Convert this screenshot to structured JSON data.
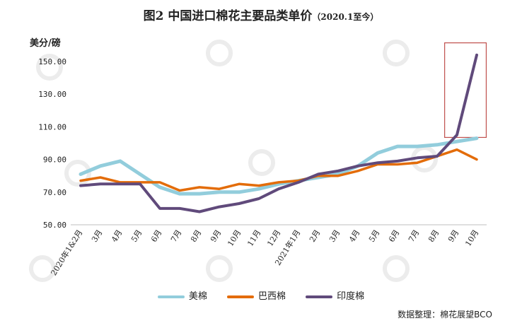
{
  "chart_data": {
    "type": "line",
    "title": "图2  中国进口棉花主要品类单价",
    "subtitle": "（2020.1至今）",
    "ylabel": "美分/磅",
    "ylim": [
      50,
      160
    ],
    "yticks": [
      "50.00",
      "70.00",
      "90.00",
      "110.00",
      "130.00",
      "150.00"
    ],
    "categories": [
      "2020年1&2月",
      "3月",
      "4月",
      "5月",
      "6月",
      "7月",
      "8月",
      "9月",
      "10月",
      "11月",
      "12月",
      "2021年1月",
      "2月",
      "3月",
      "4月",
      "5月",
      "6月",
      "7月",
      "8月",
      "9月",
      "10月"
    ],
    "series": [
      {
        "name": "美棉",
        "color": "#92cddc",
        "values": [
          81,
          86,
          89,
          81,
          73,
          69,
          69,
          70,
          70,
          72,
          75,
          77,
          79,
          81,
          86,
          94,
          98,
          98,
          99,
          101,
          103
        ]
      },
      {
        "name": "巴西棉",
        "color": "#e36c09",
        "values": [
          77,
          79,
          76,
          76,
          76,
          71,
          73,
          72,
          75,
          74,
          76,
          77,
          80,
          80,
          83,
          87,
          87,
          88,
          92,
          96,
          90
        ]
      },
      {
        "name": "印度棉",
        "color": "#604a7b",
        "values": [
          74,
          75,
          75,
          75,
          60,
          60,
          58,
          61,
          63,
          66,
          72,
          76,
          81,
          83,
          86,
          88,
          89,
          91,
          92,
          105,
          154
        ]
      }
    ],
    "legend_position": "bottom",
    "grid": false,
    "source": "数据整理：棉花展望BCO"
  }
}
